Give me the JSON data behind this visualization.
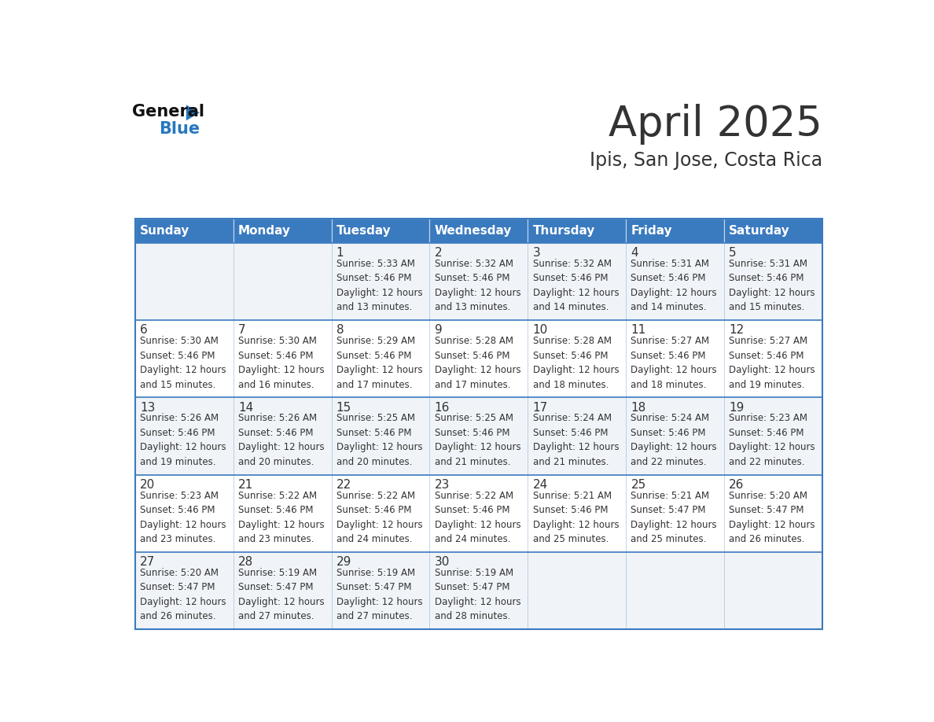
{
  "title": "April 2025",
  "subtitle": "Ipis, San Jose, Costa Rica",
  "days_of_week": [
    "Sunday",
    "Monday",
    "Tuesday",
    "Wednesday",
    "Thursday",
    "Friday",
    "Saturday"
  ],
  "header_bg": "#3a7abf",
  "header_text": "#ffffff",
  "row_bg_odd": "#f0f4f8",
  "row_bg_even": "#ffffff",
  "border_color": "#3a7abf",
  "text_color": "#333333",
  "calendar_data": [
    [
      "",
      "",
      "1\nSunrise: 5:33 AM\nSunset: 5:46 PM\nDaylight: 12 hours\nand 13 minutes.",
      "2\nSunrise: 5:32 AM\nSunset: 5:46 PM\nDaylight: 12 hours\nand 13 minutes.",
      "3\nSunrise: 5:32 AM\nSunset: 5:46 PM\nDaylight: 12 hours\nand 14 minutes.",
      "4\nSunrise: 5:31 AM\nSunset: 5:46 PM\nDaylight: 12 hours\nand 14 minutes.",
      "5\nSunrise: 5:31 AM\nSunset: 5:46 PM\nDaylight: 12 hours\nand 15 minutes."
    ],
    [
      "6\nSunrise: 5:30 AM\nSunset: 5:46 PM\nDaylight: 12 hours\nand 15 minutes.",
      "7\nSunrise: 5:30 AM\nSunset: 5:46 PM\nDaylight: 12 hours\nand 16 minutes.",
      "8\nSunrise: 5:29 AM\nSunset: 5:46 PM\nDaylight: 12 hours\nand 17 minutes.",
      "9\nSunrise: 5:28 AM\nSunset: 5:46 PM\nDaylight: 12 hours\nand 17 minutes.",
      "10\nSunrise: 5:28 AM\nSunset: 5:46 PM\nDaylight: 12 hours\nand 18 minutes.",
      "11\nSunrise: 5:27 AM\nSunset: 5:46 PM\nDaylight: 12 hours\nand 18 minutes.",
      "12\nSunrise: 5:27 AM\nSunset: 5:46 PM\nDaylight: 12 hours\nand 19 minutes."
    ],
    [
      "13\nSunrise: 5:26 AM\nSunset: 5:46 PM\nDaylight: 12 hours\nand 19 minutes.",
      "14\nSunrise: 5:26 AM\nSunset: 5:46 PM\nDaylight: 12 hours\nand 20 minutes.",
      "15\nSunrise: 5:25 AM\nSunset: 5:46 PM\nDaylight: 12 hours\nand 20 minutes.",
      "16\nSunrise: 5:25 AM\nSunset: 5:46 PM\nDaylight: 12 hours\nand 21 minutes.",
      "17\nSunrise: 5:24 AM\nSunset: 5:46 PM\nDaylight: 12 hours\nand 21 minutes.",
      "18\nSunrise: 5:24 AM\nSunset: 5:46 PM\nDaylight: 12 hours\nand 22 minutes.",
      "19\nSunrise: 5:23 AM\nSunset: 5:46 PM\nDaylight: 12 hours\nand 22 minutes."
    ],
    [
      "20\nSunrise: 5:23 AM\nSunset: 5:46 PM\nDaylight: 12 hours\nand 23 minutes.",
      "21\nSunrise: 5:22 AM\nSunset: 5:46 PM\nDaylight: 12 hours\nand 23 minutes.",
      "22\nSunrise: 5:22 AM\nSunset: 5:46 PM\nDaylight: 12 hours\nand 24 minutes.",
      "23\nSunrise: 5:22 AM\nSunset: 5:46 PM\nDaylight: 12 hours\nand 24 minutes.",
      "24\nSunrise: 5:21 AM\nSunset: 5:46 PM\nDaylight: 12 hours\nand 25 minutes.",
      "25\nSunrise: 5:21 AM\nSunset: 5:47 PM\nDaylight: 12 hours\nand 25 minutes.",
      "26\nSunrise: 5:20 AM\nSunset: 5:47 PM\nDaylight: 12 hours\nand 26 minutes."
    ],
    [
      "27\nSunrise: 5:20 AM\nSunset: 5:47 PM\nDaylight: 12 hours\nand 26 minutes.",
      "28\nSunrise: 5:19 AM\nSunset: 5:47 PM\nDaylight: 12 hours\nand 27 minutes.",
      "29\nSunrise: 5:19 AM\nSunset: 5:47 PM\nDaylight: 12 hours\nand 27 minutes.",
      "30\nSunrise: 5:19 AM\nSunset: 5:47 PM\nDaylight: 12 hours\nand 28 minutes.",
      "",
      "",
      ""
    ]
  ],
  "logo_text_general": "General",
  "logo_text_blue": "Blue",
  "logo_color_general": "#111111",
  "logo_color_blue": "#2878be",
  "logo_triangle_color": "#2878be",
  "title_fontsize": 38,
  "subtitle_fontsize": 17,
  "header_fontsize": 11,
  "daynum_fontsize": 11,
  "cell_fontsize": 8.5
}
